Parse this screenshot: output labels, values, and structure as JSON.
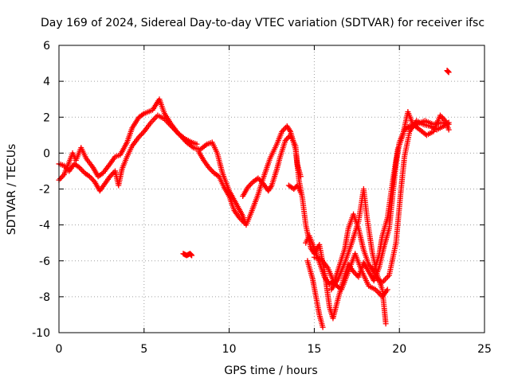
{
  "chart_data": {
    "type": "scatter",
    "title": "Day 169 of 2024, Sidereal Day-to-day VTEC variation (SDTVAR) for receiver ifsc",
    "xlabel": "GPS time / hours",
    "ylabel": "SDTVAR / TECUs",
    "xlim": [
      0,
      25
    ],
    "ylim": [
      -10,
      6
    ],
    "xticks": [
      0,
      5,
      10,
      15,
      20,
      25
    ],
    "yticks": [
      -10,
      -8,
      -6,
      -4,
      -2,
      0,
      2,
      4,
      6
    ],
    "grid": true,
    "marker": "+",
    "colors": {
      "series": "#ff0000",
      "grid": "#a0a0a0",
      "axis": "#000000"
    },
    "series": [
      {
        "name": "",
        "tracks": [
          [
            [
              0.0,
              -1.5
            ],
            [
              0.3,
              -1.2
            ],
            [
              0.6,
              -0.5
            ],
            [
              0.8,
              0.0
            ],
            [
              1.0,
              -0.4
            ],
            [
              1.3,
              0.3
            ],
            [
              1.6,
              -0.3
            ],
            [
              2.0,
              -0.8
            ],
            [
              2.3,
              -1.3
            ],
            [
              2.6,
              -1.1
            ],
            [
              3.0,
              -0.6
            ],
            [
              3.3,
              -0.2
            ],
            [
              3.6,
              -0.1
            ],
            [
              4.0,
              0.6
            ],
            [
              4.3,
              1.4
            ],
            [
              4.7,
              2.0
            ],
            [
              5.0,
              2.2
            ],
            [
              5.5,
              2.4
            ],
            [
              5.9,
              3.0
            ],
            [
              6.2,
              2.2
            ],
            [
              6.6,
              1.6
            ],
            [
              7.0,
              1.1
            ],
            [
              7.5,
              0.6
            ],
            [
              7.9,
              0.3
            ],
            [
              8.3,
              0.2
            ],
            [
              8.7,
              0.5
            ],
            [
              9.0,
              0.6
            ],
            [
              9.3,
              0.0
            ],
            [
              9.6,
              -1.1
            ],
            [
              10.0,
              -2.1
            ],
            [
              10.4,
              -2.8
            ],
            [
              10.8,
              -3.5
            ],
            [
              11.0,
              -4.0
            ],
            [
              11.3,
              -3.3
            ],
            [
              11.7,
              -2.3
            ],
            [
              12.0,
              -1.4
            ],
            [
              12.4,
              -0.3
            ],
            [
              12.8,
              0.5
            ],
            [
              13.1,
              1.2
            ],
            [
              13.4,
              1.5
            ],
            [
              13.6,
              1.2
            ],
            [
              13.9,
              0.2
            ],
            [
              14.1,
              -1.5
            ],
            [
              14.3,
              -2.5
            ],
            [
              14.5,
              -4.0
            ],
            [
              14.8,
              -5.3
            ],
            [
              15.0,
              -5.6
            ],
            [
              15.3,
              -5.1
            ],
            [
              15.6,
              -6.6
            ],
            [
              15.9,
              -8.6
            ],
            [
              16.1,
              -9.2
            ],
            [
              16.4,
              -8.1
            ],
            [
              16.7,
              -7.1
            ],
            [
              17.0,
              -6.2
            ],
            [
              17.3,
              -6.6
            ],
            [
              17.6,
              -6.9
            ],
            [
              17.9,
              -6.1
            ],
            [
              18.2,
              -6.6
            ],
            [
              18.5,
              -7.1
            ],
            [
              18.8,
              -6.4
            ],
            [
              19.1,
              -5.2
            ],
            [
              19.4,
              -4.2
            ],
            [
              19.6,
              -2.4
            ],
            [
              19.8,
              -0.6
            ],
            [
              20.0,
              0.6
            ],
            [
              20.3,
              1.3
            ],
            [
              20.6,
              1.5
            ],
            [
              21.0,
              1.6
            ],
            [
              21.5,
              1.8
            ],
            [
              22.0,
              1.6
            ],
            [
              22.5,
              1.7
            ],
            [
              22.9,
              1.6
            ]
          ],
          [
            [
              0.0,
              -0.6
            ],
            [
              0.3,
              -0.7
            ],
            [
              0.6,
              -1.0
            ],
            [
              0.9,
              -0.6
            ],
            [
              1.2,
              -0.8
            ],
            [
              1.5,
              -1.1
            ],
            [
              1.8,
              -1.3
            ],
            [
              2.1,
              -1.6
            ],
            [
              2.4,
              -2.1
            ],
            [
              2.7,
              -1.7
            ],
            [
              3.0,
              -1.3
            ],
            [
              3.3,
              -1.0
            ],
            [
              3.5,
              -1.8
            ],
            [
              3.7,
              -0.9
            ],
            [
              4.0,
              -0.2
            ],
            [
              4.3,
              0.4
            ],
            [
              4.7,
              0.9
            ],
            [
              5.0,
              1.2
            ],
            [
              5.4,
              1.7
            ],
            [
              5.8,
              2.1
            ],
            [
              6.2,
              1.9
            ],
            [
              6.6,
              1.5
            ],
            [
              7.0,
              1.1
            ],
            [
              7.4,
              0.8
            ],
            [
              7.8,
              0.6
            ],
            [
              8.1,
              0.5
            ]
          ],
          [
            [
              8.2,
              0.1
            ],
            [
              8.5,
              -0.4
            ],
            [
              8.8,
              -0.8
            ],
            [
              9.1,
              -1.1
            ],
            [
              9.4,
              -1.3
            ],
            [
              9.7,
              -1.9
            ],
            [
              10.0,
              -2.4
            ],
            [
              10.3,
              -3.2
            ],
            [
              10.6,
              -3.6
            ],
            [
              10.9,
              -3.9
            ]
          ],
          [
            [
              10.8,
              -2.4
            ],
            [
              11.1,
              -1.9
            ],
            [
              11.4,
              -1.6
            ],
            [
              11.7,
              -1.4
            ],
            [
              12.0,
              -1.7
            ],
            [
              12.3,
              -2.1
            ],
            [
              12.5,
              -1.8
            ],
            [
              12.8,
              -0.9
            ],
            [
              13.0,
              -0.2
            ],
            [
              13.3,
              0.7
            ],
            [
              13.6,
              1.0
            ],
            [
              13.9,
              0.4
            ],
            [
              14.0,
              -0.6
            ],
            [
              14.2,
              -1.3
            ]
          ],
          [
            [
              13.5,
              -1.8
            ],
            [
              13.8,
              -2.0
            ],
            [
              14.0,
              -1.8
            ],
            [
              14.2,
              -2.2
            ]
          ],
          [
            [
              14.5,
              -5.0
            ],
            [
              14.7,
              -4.6
            ],
            [
              15.0,
              -5.3
            ],
            [
              15.3,
              -6.1
            ],
            [
              15.6,
              -6.9
            ],
            [
              15.9,
              -7.3
            ],
            [
              16.2,
              -7.1
            ],
            [
              16.5,
              -6.2
            ],
            [
              16.8,
              -5.3
            ],
            [
              17.0,
              -4.2
            ],
            [
              17.3,
              -3.4
            ],
            [
              17.6,
              -4.2
            ],
            [
              17.9,
              -5.4
            ],
            [
              18.2,
              -6.2
            ],
            [
              18.5,
              -6.6
            ],
            [
              18.8,
              -5.7
            ],
            [
              19.0,
              -4.6
            ],
            [
              19.3,
              -3.6
            ],
            [
              19.6,
              -1.6
            ],
            [
              19.9,
              0.2
            ],
            [
              20.2,
              1.0
            ],
            [
              20.5,
              2.3
            ],
            [
              20.8,
              1.6
            ],
            [
              21.2,
              1.3
            ],
            [
              21.6,
              1.0
            ],
            [
              22.0,
              1.2
            ],
            [
              22.4,
              2.1
            ],
            [
              22.7,
              1.8
            ],
            [
              22.9,
              1.3
            ]
          ],
          [
            [
              14.6,
              -6.0
            ],
            [
              14.9,
              -7.0
            ],
            [
              15.1,
              -8.0
            ],
            [
              15.3,
              -9.0
            ],
            [
              15.5,
              -9.7
            ]
          ],
          [
            [
              16.0,
              -7.6
            ],
            [
              16.4,
              -7.0
            ],
            [
              16.8,
              -6.1
            ],
            [
              17.2,
              -5.0
            ],
            [
              17.6,
              -3.8
            ],
            [
              17.9,
              -2.0
            ],
            [
              18.1,
              -3.6
            ],
            [
              18.4,
              -5.5
            ],
            [
              18.7,
              -6.8
            ],
            [
              19.0,
              -7.6
            ],
            [
              19.2,
              -9.5
            ]
          ],
          [
            [
              15.0,
              -5.8
            ],
            [
              15.4,
              -5.9
            ],
            [
              15.8,
              -6.4
            ],
            [
              16.2,
              -7.3
            ],
            [
              16.6,
              -7.6
            ],
            [
              17.0,
              -6.6
            ],
            [
              17.4,
              -5.6
            ],
            [
              17.8,
              -6.6
            ],
            [
              18.2,
              -7.4
            ],
            [
              18.6,
              -7.6
            ],
            [
              19.0,
              -8.0
            ],
            [
              19.3,
              -7.6
            ]
          ],
          [
            [
              18.4,
              -6.4
            ],
            [
              18.7,
              -7.0
            ],
            [
              19.0,
              -7.2
            ],
            [
              19.4,
              -6.8
            ],
            [
              19.8,
              -5.0
            ],
            [
              20.1,
              -2.0
            ],
            [
              20.3,
              -0.2
            ],
            [
              20.6,
              1.2
            ],
            [
              21.0,
              1.8
            ],
            [
              21.4,
              1.6
            ],
            [
              21.8,
              1.5
            ],
            [
              22.2,
              1.3
            ],
            [
              22.6,
              1.5
            ],
            [
              22.9,
              1.7
            ]
          ]
        ],
        "clusters": [
          [
            [
              7.3,
              -5.6
            ],
            [
              7.5,
              -5.7
            ],
            [
              7.7,
              -5.6
            ],
            [
              7.8,
              -5.7
            ]
          ],
          [
            [
              22.8,
              4.6
            ],
            [
              22.9,
              4.5
            ]
          ]
        ]
      }
    ]
  }
}
